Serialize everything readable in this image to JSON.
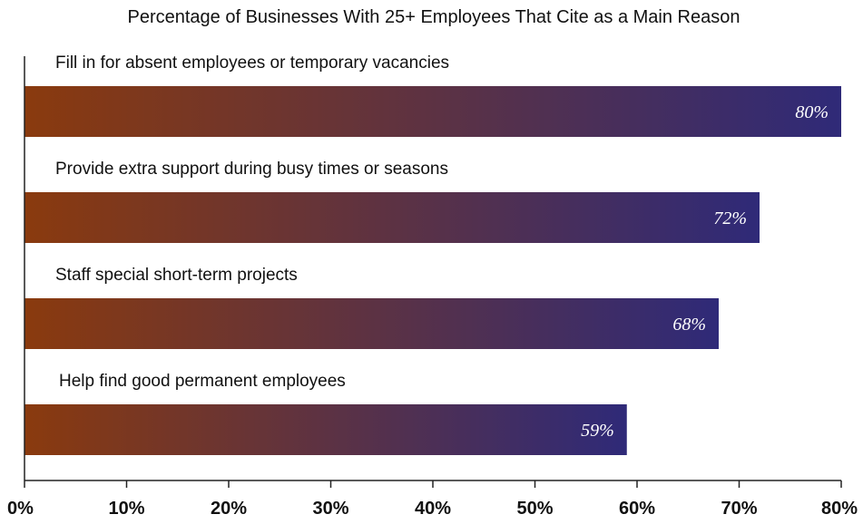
{
  "chart_data": {
    "type": "bar",
    "orientation": "horizontal",
    "title": "Percentage of Businesses With 25+ Employees That Cite as a Main Reason",
    "categories": [
      "Fill in for absent employees or temporary vacancies",
      "Provide extra support during busy times or seasons",
      "Staff special short-term projects",
      "Help find good permanent employees"
    ],
    "values": [
      80,
      72,
      68,
      59
    ],
    "value_labels": [
      "80%",
      "72%",
      "68%",
      "59%"
    ],
    "x_ticks": [
      "0%",
      "10%",
      "20%",
      "30%",
      "40%",
      "50%",
      "60%",
      "70%",
      "80%"
    ],
    "xlim": [
      0,
      80
    ],
    "xlabel": "",
    "ylabel": "",
    "grid": false,
    "bar_gradient": [
      "#8a3a0e",
      "#2f2a78"
    ]
  }
}
